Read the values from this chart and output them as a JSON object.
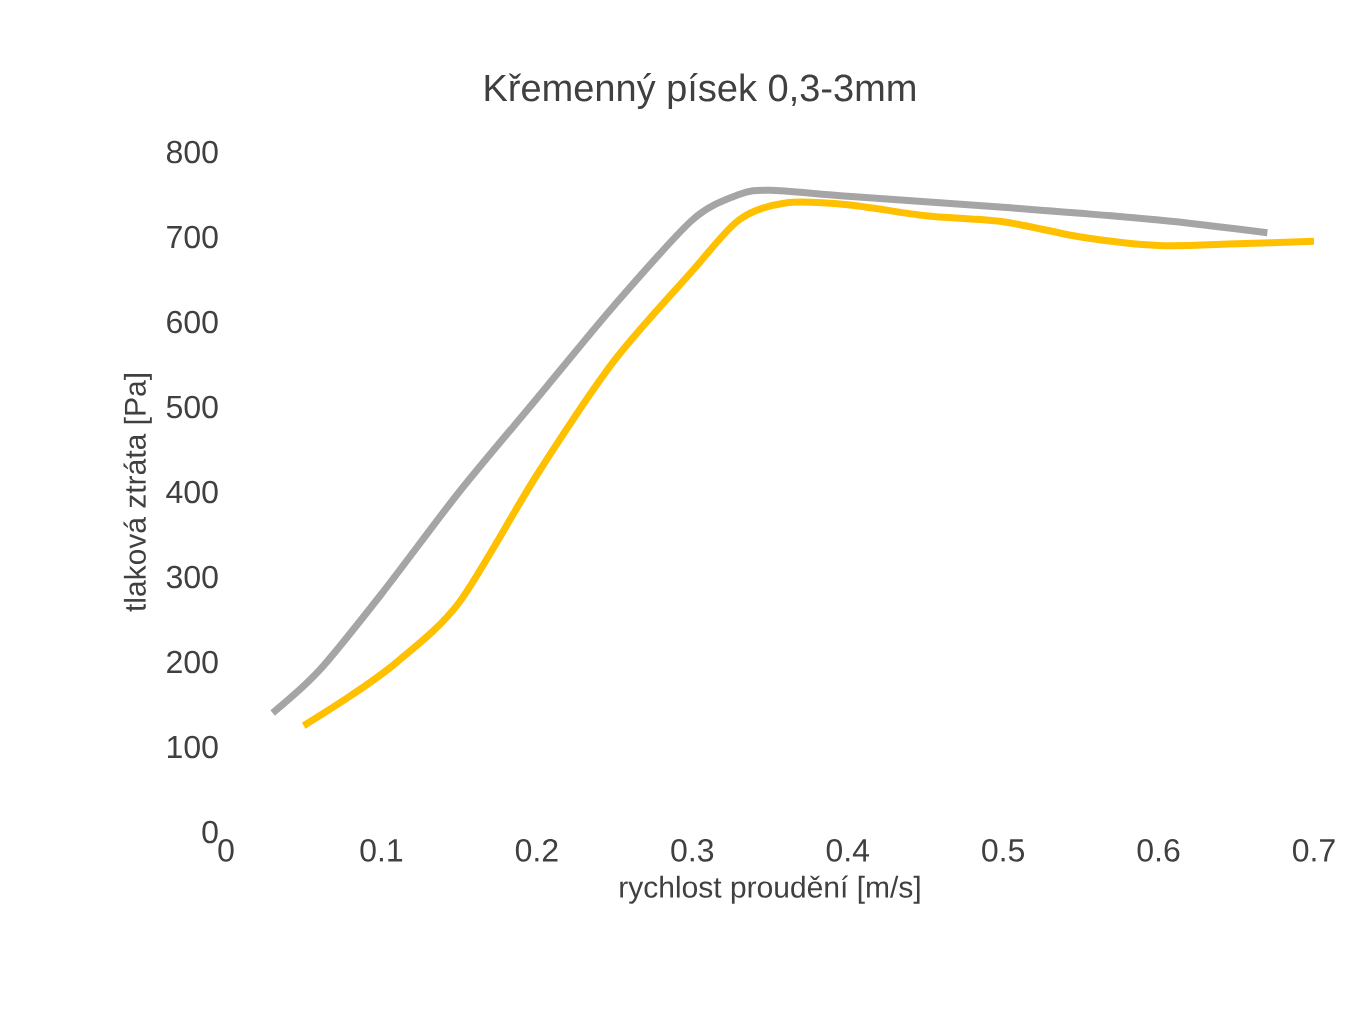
{
  "chart_data": {
    "type": "line",
    "title": "Křemenný písek 0,3-3mm",
    "xlabel": "rychlost proudění [m/s]",
    "ylabel": "tlaková ztráta [Pa]",
    "xlim": [
      0,
      0.7
    ],
    "xticks": [
      0,
      0.1,
      0.2,
      0.3,
      0.4,
      0.5,
      0.6,
      0.7
    ],
    "ylim": [
      0,
      800
    ],
    "yticks": [
      0,
      100,
      200,
      300,
      400,
      500,
      600,
      700,
      800
    ],
    "grid": false,
    "series": [
      {
        "color": "#a5a5a5",
        "x": [
          0.03,
          0.06,
          0.1,
          0.15,
          0.2,
          0.25,
          0.3,
          0.33,
          0.35,
          0.4,
          0.5,
          0.6,
          0.67
        ],
        "values": [
          140,
          190,
          280,
          400,
          510,
          620,
          720,
          750,
          755,
          748,
          735,
          720,
          705
        ]
      },
      {
        "color": "#ffc000",
        "x": [
          0.05,
          0.08,
          0.11,
          0.15,
          0.2,
          0.25,
          0.3,
          0.33,
          0.36,
          0.4,
          0.45,
          0.5,
          0.55,
          0.6,
          0.65,
          0.7
        ],
        "values": [
          125,
          160,
          200,
          270,
          420,
          555,
          660,
          720,
          740,
          738,
          725,
          718,
          700,
          690,
          692,
          695
        ]
      }
    ]
  }
}
